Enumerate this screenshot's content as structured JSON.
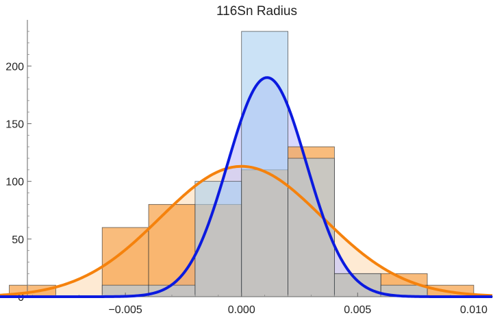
{
  "chart_data": {
    "type": "bar",
    "title": "116Sn Radius",
    "xlabel": "",
    "ylabel": "",
    "xlim": [
      -0.0104,
      0.0108
    ],
    "ylim": [
      0,
      240
    ],
    "x_ticks": [
      {
        "value": -0.005,
        "label": "−0.005"
      },
      {
        "value": 0.0,
        "label": "0.000"
      },
      {
        "value": 0.005,
        "label": "0.005"
      },
      {
        "value": 0.01,
        "label": "0.010"
      }
    ],
    "y_ticks": [
      {
        "value": 0,
        "label": "0"
      },
      {
        "value": 50,
        "label": "50"
      },
      {
        "value": 100,
        "label": "100"
      },
      {
        "value": 150,
        "label": "150"
      },
      {
        "value": 200,
        "label": "200"
      }
    ],
    "bin_edges": [
      -0.01,
      -0.008,
      -0.006,
      -0.004,
      -0.002,
      0.0,
      0.002,
      0.004,
      0.006,
      0.008,
      0.01
    ],
    "histograms": [
      {
        "color": "#f7a24a",
        "edge": "#333333",
        "counts": [
          10,
          0,
          60,
          80,
          80,
          110,
          130,
          20,
          20,
          10
        ]
      },
      {
        "color": "#a9cff0",
        "edge": "#333333",
        "counts": [
          0,
          0,
          10,
          10,
          100,
          230,
          120,
          20,
          10,
          0
        ]
      }
    ],
    "curves": [
      {
        "color": "#f5820d",
        "fill": "#fde3c4",
        "mean": 0.0,
        "sd": 0.0035,
        "peak": 113
      },
      {
        "color": "#0b1adf",
        "fill": "#c8c8fb",
        "mean": 0.0011,
        "sd": 0.0017,
        "peak": 190
      }
    ]
  }
}
